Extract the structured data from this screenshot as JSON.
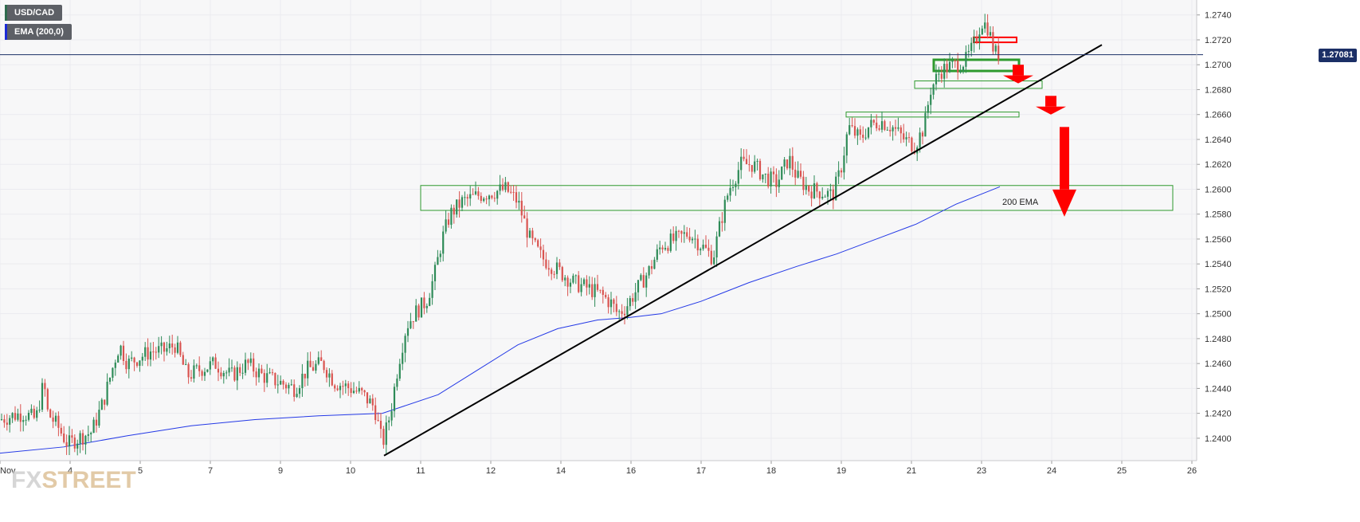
{
  "legend": {
    "symbol": "USD/CAD",
    "indicator": "EMA (200,0)",
    "symbol_color": "#2e6b4e",
    "indicator_color": "#1c2bd6"
  },
  "logo": {
    "part1": "FX",
    "part2": "STREET"
  },
  "current_price": {
    "label": "1.27081",
    "value": 1.27081,
    "color": "#1b2f66"
  },
  "colors": {
    "up": "#2e8b57",
    "down": "#d9534f",
    "ema": "#2439e6",
    "trendline": "#000000",
    "zone": "#2e9a2e",
    "arrow": "#ff0000",
    "grid": "#ebebef",
    "background": "#f7f7f8"
  },
  "chart_data": {
    "type": "candlestick",
    "title": "",
    "ylim": [
      1.2382,
      1.2752
    ],
    "y_ticks": [
      "1.2400",
      "1.2420",
      "1.2440",
      "1.2460",
      "1.2480",
      "1.2500",
      "1.2520",
      "1.2540",
      "1.2560",
      "1.2580",
      "1.2600",
      "1.2620",
      "1.2640",
      "1.2660",
      "1.2680",
      "1.2700",
      "1.2720",
      "1.2740"
    ],
    "x_ticks": [
      {
        "label": "Nov",
        "t": 0
      },
      {
        "label": "4",
        "t": 88
      },
      {
        "label": "5",
        "t": 176
      },
      {
        "label": "7",
        "t": 264
      },
      {
        "label": "9",
        "t": 352
      },
      {
        "label": "10",
        "t": 440
      },
      {
        "label": "11",
        "t": 528
      },
      {
        "label": "12",
        "t": 616
      },
      {
        "label": "14",
        "t": 704
      },
      {
        "label": "16",
        "t": 792
      },
      {
        "label": "17",
        "t": 880
      },
      {
        "label": "18",
        "t": 968
      },
      {
        "label": "19",
        "t": 1056
      },
      {
        "label": "21",
        "t": 1144
      },
      {
        "label": "23",
        "t": 1232
      },
      {
        "label": "24",
        "t": 1320
      },
      {
        "label": "25",
        "t": 1408
      },
      {
        "label": "26",
        "t": 1496
      }
    ],
    "price_path": [
      [
        0,
        1.2415
      ],
      [
        15,
        1.2418
      ],
      [
        30,
        1.242
      ],
      [
        45,
        1.2415
      ],
      [
        55,
        1.2445
      ],
      [
        60,
        1.242
      ],
      [
        72,
        1.241
      ],
      [
        85,
        1.2395
      ],
      [
        98,
        1.24
      ],
      [
        115,
        1.2405
      ],
      [
        130,
        1.243
      ],
      [
        145,
        1.2465
      ],
      [
        150,
        1.2475
      ],
      [
        160,
        1.246
      ],
      [
        175,
        1.2465
      ],
      [
        190,
        1.247
      ],
      [
        205,
        1.247
      ],
      [
        220,
        1.2475
      ],
      [
        235,
        1.245
      ],
      [
        250,
        1.2455
      ],
      [
        270,
        1.246
      ],
      [
        290,
        1.245
      ],
      [
        310,
        1.246
      ],
      [
        330,
        1.245
      ],
      [
        350,
        1.2445
      ],
      [
        370,
        1.244
      ],
      [
        385,
        1.2455
      ],
      [
        405,
        1.246
      ],
      [
        420,
        1.2445
      ],
      [
        440,
        1.244
      ],
      [
        455,
        1.2435
      ],
      [
        470,
        1.2425
      ],
      [
        480,
        1.2395
      ],
      [
        490,
        1.242
      ],
      [
        500,
        1.246
      ],
      [
        510,
        1.249
      ],
      [
        520,
        1.25
      ],
      [
        535,
        1.251
      ],
      [
        545,
        1.253
      ],
      [
        555,
        1.256
      ],
      [
        565,
        1.258
      ],
      [
        580,
        1.259
      ],
      [
        600,
        1.2595
      ],
      [
        620,
        1.2598
      ],
      [
        635,
        1.26
      ],
      [
        650,
        1.259
      ],
      [
        665,
        1.256
      ],
      [
        680,
        1.2545
      ],
      [
        700,
        1.2535
      ],
      [
        720,
        1.2525
      ],
      [
        740,
        1.252
      ],
      [
        755,
        1.2515
      ],
      [
        768,
        1.2508
      ],
      [
        775,
        1.25
      ],
      [
        785,
        1.2505
      ],
      [
        800,
        1.252
      ],
      [
        815,
        1.2535
      ],
      [
        830,
        1.2555
      ],
      [
        850,
        1.256
      ],
      [
        865,
        1.2565
      ],
      [
        880,
        1.2555
      ],
      [
        895,
        1.2545
      ],
      [
        905,
        1.2575
      ],
      [
        915,
        1.26
      ],
      [
        930,
        1.262
      ],
      [
        945,
        1.262
      ],
      [
        960,
        1.261
      ],
      [
        975,
        1.2605
      ],
      [
        990,
        1.2625
      ],
      [
        1000,
        1.261
      ],
      [
        1015,
        1.26
      ],
      [
        1030,
        1.2598
      ],
      [
        1045,
        1.2595
      ],
      [
        1055,
        1.2615
      ],
      [
        1065,
        1.265
      ],
      [
        1080,
        1.264
      ],
      [
        1090,
        1.265
      ],
      [
        1105,
        1.2655
      ],
      [
        1120,
        1.265
      ],
      [
        1135,
        1.264
      ],
      [
        1148,
        1.2635
      ],
      [
        1160,
        1.265
      ],
      [
        1168,
        1.268
      ],
      [
        1180,
        1.2695
      ],
      [
        1190,
        1.2698
      ],
      [
        1200,
        1.27
      ],
      [
        1212,
        1.2703
      ],
      [
        1222,
        1.2715
      ],
      [
        1232,
        1.2735
      ],
      [
        1240,
        1.273
      ],
      [
        1248,
        1.271
      ],
      [
        1255,
        1.2708
      ]
    ],
    "ema_path": [
      [
        0,
        1.2388
      ],
      [
        80,
        1.2393
      ],
      [
        160,
        1.2402
      ],
      [
        240,
        1.241
      ],
      [
        320,
        1.2415
      ],
      [
        400,
        1.2418
      ],
      [
        480,
        1.242
      ],
      [
        550,
        1.2435
      ],
      [
        600,
        1.2455
      ],
      [
        650,
        1.2475
      ],
      [
        700,
        1.2488
      ],
      [
        750,
        1.2495
      ],
      [
        790,
        1.2497
      ],
      [
        830,
        1.25
      ],
      [
        880,
        1.251
      ],
      [
        940,
        1.2525
      ],
      [
        1000,
        1.2538
      ],
      [
        1050,
        1.2548
      ],
      [
        1100,
        1.256
      ],
      [
        1150,
        1.2572
      ],
      [
        1200,
        1.2588
      ],
      [
        1255,
        1.2602
      ]
    ],
    "trendline": [
      [
        482,
        1.2386
      ],
      [
        1383,
        1.2716
      ]
    ],
    "zones": [
      {
        "t0": 528,
        "t1": 1472,
        "y0": 1.2583,
        "y1": 1.2603,
        "weight": "thin"
      },
      {
        "t0": 1062,
        "t1": 1279,
        "y0": 1.2658,
        "y1": 1.2662,
        "weight": "thin"
      },
      {
        "t0": 1148,
        "t1": 1308,
        "y0": 1.2681,
        "y1": 1.2687,
        "weight": "thin"
      },
      {
        "t0": 1172,
        "t1": 1279,
        "y0": 1.2695,
        "y1": 1.2704,
        "weight": "thick"
      }
    ],
    "resistance_zone": {
      "t0": 1222,
      "t1": 1276,
      "y0": 1.2718,
      "y1": 1.2722
    },
    "arrows": [
      {
        "t": 1278,
        "top": 1.27,
        "bottom": 1.2685,
        "size": "small"
      },
      {
        "t": 1319,
        "top": 1.2675,
        "bottom": 1.266,
        "size": "medium"
      },
      {
        "t": 1336,
        "top": 1.265,
        "bottom": 1.2578,
        "size": "large"
      }
    ],
    "annotations": [
      {
        "text": "200 EMA",
        "t": 1258,
        "y": 1.259
      }
    ]
  }
}
